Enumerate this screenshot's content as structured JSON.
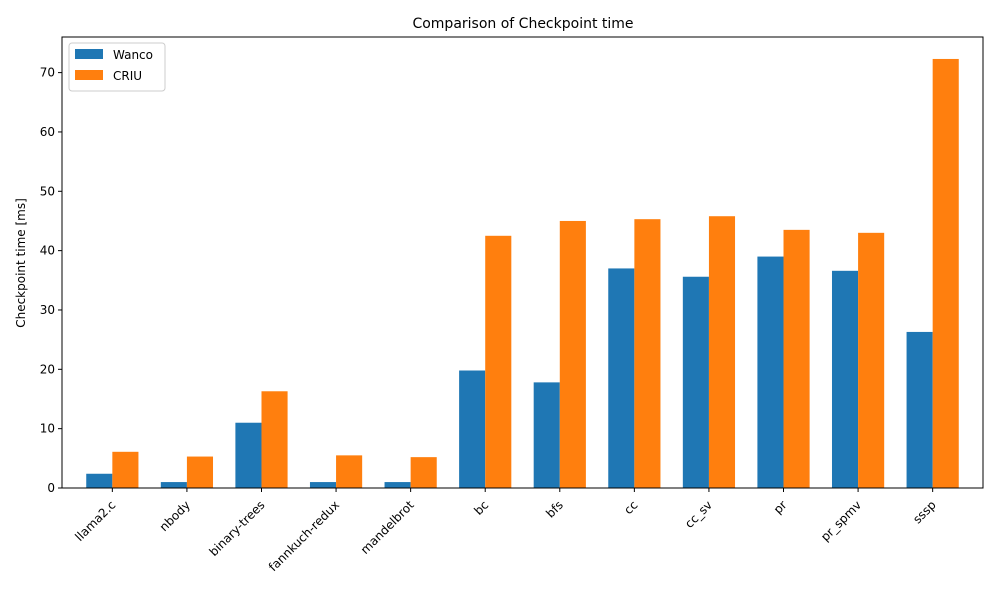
{
  "chart_data": {
    "type": "bar",
    "title": "Comparison of Checkpoint time",
    "xlabel": "",
    "ylabel": "Checkpoint time [ms]",
    "ylim": [
      0,
      76
    ],
    "yticks": [
      0,
      10,
      20,
      30,
      40,
      50,
      60,
      70
    ],
    "grid": false,
    "legend_position": "top-left",
    "categories": [
      "llama2.c",
      "nbody",
      "binary-trees",
      "fannkuch-redux",
      "mandelbrot",
      "bc",
      "bfs",
      "cc",
      "cc_sv",
      "pr",
      "pr_spmv",
      "sssp"
    ],
    "series": [
      {
        "name": "Wanco",
        "color": "#1f77b4",
        "values": [
          2.4,
          1.0,
          11.0,
          1.0,
          1.0,
          19.8,
          17.8,
          37.0,
          35.6,
          39.0,
          36.6,
          26.3
        ]
      },
      {
        "name": "CRIU",
        "color": "#ff7f0e",
        "values": [
          6.1,
          5.3,
          16.3,
          5.5,
          5.2,
          42.5,
          45.0,
          45.3,
          45.8,
          43.5,
          43.0,
          72.3
        ]
      }
    ]
  }
}
